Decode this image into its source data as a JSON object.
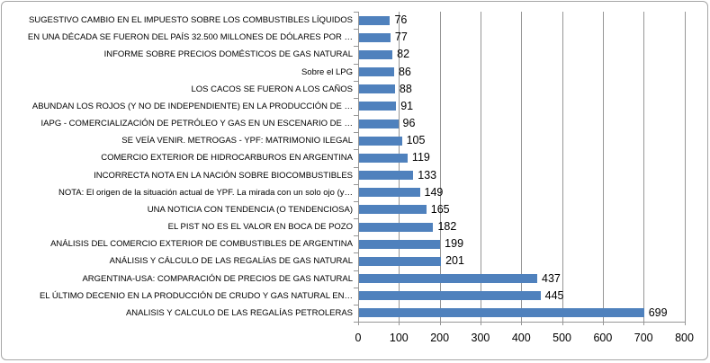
{
  "chart_data": {
    "type": "bar",
    "orientation": "horizontal",
    "title": "",
    "categories": [
      "SUGESTIVO CAMBIO EN EL IMPUESTO SOBRE LOS COMBUSTIBLES LÍQUIDOS",
      "EN UNA DÉCADA SE FUERON DEL PAÍS 32.500 MILLONES DE DÓLARES POR …",
      "INFORME SOBRE PRECIOS DOMÉSTICOS DE GAS NATURAL",
      "Sobre el LPG",
      "LOS CACOS SE FUERON A LOS CAÑOS",
      "ABUNDAN LOS ROJOS (Y NO DE INDEPENDIENTE) EN LA PRODUCCIÓN DE …",
      "IAPG - COMERCIALIZACIÓN DE PETRÓLEO Y GAS EN UN ESCENARIO DE …",
      "SE VEÍA VENIR. METROGAS - YPF: MATRIMONIO ILEGAL",
      "COMERCIO EXTERIOR DE HIDROCARBUROS EN ARGENTINA",
      "INCORRECTA NOTA EN LA NACIÓN SOBRE BIOCOMBUSTIBLES",
      "NOTA: El origen de la situación actual de YPF. La mirada con un solo ojo (y…",
      "UNA NOTICIA CON TENDENCIA (O TENDENCIOSA)",
      "EL PIST NO ES EL VALOR EN BOCA DE POZO",
      "ANÁLISIS DEL COMERCIO EXTERIOR DE COMBUSTIBLES DE ARGENTINA",
      "ANÁLISIS Y CÁLCULO DE LAS REGALÍAS DE GAS NATURAL",
      "ARGENTINA-USA: COMPARACIÓN DE PRECIOS DE GAS NATURAL",
      "EL ÚLTIMO DECENIO EN LA PRODUCCIÓN DE CRUDO Y GAS NATURAL EN…",
      "ANALISIS Y CALCULO DE LAS REGALÍAS PETROLERAS"
    ],
    "values": [
      76,
      77,
      82,
      86,
      88,
      91,
      96,
      105,
      119,
      133,
      149,
      165,
      182,
      199,
      201,
      437,
      445,
      699
    ],
    "data_labels_shown": true,
    "x_ticks": [
      0,
      100,
      200,
      300,
      400,
      500,
      600,
      700,
      800
    ],
    "xlim": [
      0,
      800
    ],
    "grid": true,
    "legend": false,
    "colors": {
      "bar": "#4F81BD",
      "gridline": "#969696",
      "axis": "#969696",
      "text": "#000000",
      "frame_border": "#A6A6A6",
      "background": "#FFFFFF"
    }
  }
}
